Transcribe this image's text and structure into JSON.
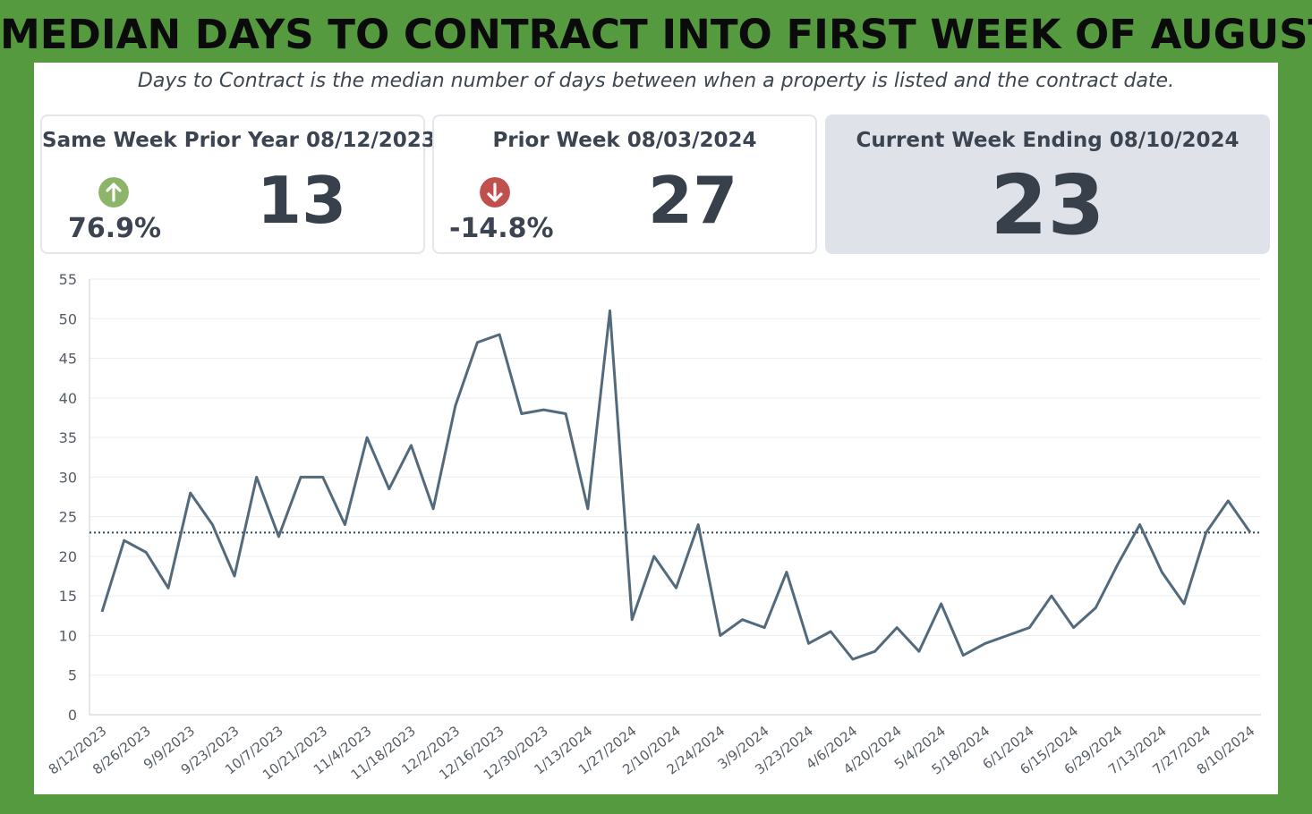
{
  "title": "MEDIAN DAYS TO CONTRACT INTO FIRST WEEK OF AUGUST",
  "subtitle": "Days to Contract is the median number of days between when a property is listed and the contract date.",
  "cards": {
    "prior_year": {
      "title": "Same Week Prior Year 08/12/2023",
      "value": "13",
      "change": "76.9%",
      "direction": "up",
      "icon": "arrow-up-circle-icon",
      "icon_color": "#8db56a"
    },
    "prior_week": {
      "title": "Prior Week 08/03/2024",
      "value": "27",
      "change": "-14.8%",
      "direction": "down",
      "icon": "arrow-down-circle-icon",
      "icon_color": "#c0504d"
    },
    "current": {
      "title": "Current Week Ending 08/10/2024",
      "value": "23"
    }
  },
  "colors": {
    "line": "#536a7c",
    "reference_line": "#2a4863",
    "background": "#569a40"
  },
  "chart_data": {
    "type": "line",
    "ylim": [
      0,
      55
    ],
    "yticks": [
      0,
      5,
      10,
      15,
      20,
      25,
      30,
      35,
      40,
      45,
      50,
      55
    ],
    "xtick_labels": [
      "8/12/2023",
      "8/26/2023",
      "9/9/2023",
      "9/23/2023",
      "10/7/2023",
      "10/21/2023",
      "11/4/2023",
      "11/18/2023",
      "12/2/2023",
      "12/16/2023",
      "12/30/2023",
      "1/13/2024",
      "1/27/2024",
      "2/10/2024",
      "2/24/2024",
      "3/9/2024",
      "3/23/2024",
      "4/6/2024",
      "4/20/2024",
      "5/4/2024",
      "5/18/2024",
      "6/1/2024",
      "6/15/2024",
      "6/29/2024",
      "7/13/2024",
      "7/27/2024",
      "8/10/2024"
    ],
    "x": [
      "8/12/2023",
      "8/19/2023",
      "8/26/2023",
      "9/2/2023",
      "9/9/2023",
      "9/16/2023",
      "9/23/2023",
      "9/30/2023",
      "10/7/2023",
      "10/14/2023",
      "10/21/2023",
      "10/28/2023",
      "11/4/2023",
      "11/11/2023",
      "11/18/2023",
      "11/25/2023",
      "12/2/2023",
      "12/9/2023",
      "12/16/2023",
      "12/23/2023",
      "12/30/2023",
      "1/6/2024",
      "1/13/2024",
      "1/20/2024",
      "1/27/2024",
      "2/3/2024",
      "2/10/2024",
      "2/17/2024",
      "2/24/2024",
      "3/2/2024",
      "3/9/2024",
      "3/16/2024",
      "3/23/2024",
      "3/30/2024",
      "4/6/2024",
      "4/13/2024",
      "4/20/2024",
      "4/27/2024",
      "5/4/2024",
      "5/11/2024",
      "5/18/2024",
      "5/25/2024",
      "6/1/2024",
      "6/8/2024",
      "6/15/2024",
      "6/22/2024",
      "6/29/2024",
      "7/6/2024",
      "7/13/2024",
      "7/20/2024",
      "7/27/2024",
      "8/3/2024",
      "8/10/2024"
    ],
    "values": [
      13,
      22,
      20.5,
      16,
      28,
      24,
      17.5,
      30,
      22.5,
      30,
      30,
      24,
      35,
      28.5,
      34,
      26,
      39,
      47,
      48,
      38,
      38.5,
      38,
      26,
      51,
      12,
      20,
      16,
      24,
      10,
      12,
      11,
      18,
      9,
      10.5,
      7,
      8,
      11,
      8,
      14,
      7.5,
      9,
      10,
      11,
      15,
      11,
      13.5,
      19,
      24,
      18,
      14,
      23,
      27,
      23
    ],
    "reference_line": 23
  }
}
